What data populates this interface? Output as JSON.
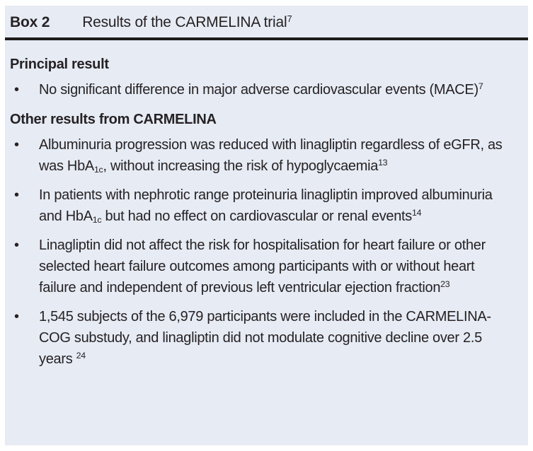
{
  "header": {
    "label": "Box 2",
    "title": "Results of the CARMELINA trial",
    "title_sup": "7"
  },
  "sections": [
    {
      "heading": "Principal result",
      "bullets": [
        [
          {
            "t": "No significant difference in major adverse cardiovascular events (MACE)"
          },
          {
            "t": "7",
            "s": "sup"
          }
        ]
      ]
    },
    {
      "heading": "Other results from CARMELINA",
      "bullets": [
        [
          {
            "t": "Albuminuria progression was reduced with linagliptin regardless of eGFR, as was HbA"
          },
          {
            "t": "1c",
            "s": "sub"
          },
          {
            "t": ", without increasing the risk of hypoglycaemia"
          },
          {
            "t": "13",
            "s": "sup"
          }
        ],
        [
          {
            "t": "In patients with nephrotic range proteinuria linagliptin improved albuminuria and HbA"
          },
          {
            "t": "1c",
            "s": "sub"
          },
          {
            "t": " but had no effect on cardiovascular or renal events"
          },
          {
            "t": "14",
            "s": "sup"
          }
        ],
        [
          {
            "t": "Linagliptin did not affect the risk for hospitalisation for heart failure or other selected heart failure outcomes among participants with or without heart failure and independent of previous left ventricular ejection fraction"
          },
          {
            "t": "23",
            "s": "sup"
          }
        ],
        [
          {
            "t": "1,545 subjects of the 6,979 participants were included in the CARMELINA-COG substudy, and linagliptin did not modulate cognitive decline over 2.5 years "
          },
          {
            "t": "24",
            "s": "sup"
          }
        ]
      ]
    }
  ],
  "bullet_glyph": "•",
  "colors": {
    "page_bg": "#ffffff",
    "box_bg": "#e6ebf4",
    "rule": "#1d1c1a",
    "text": "#262224"
  }
}
